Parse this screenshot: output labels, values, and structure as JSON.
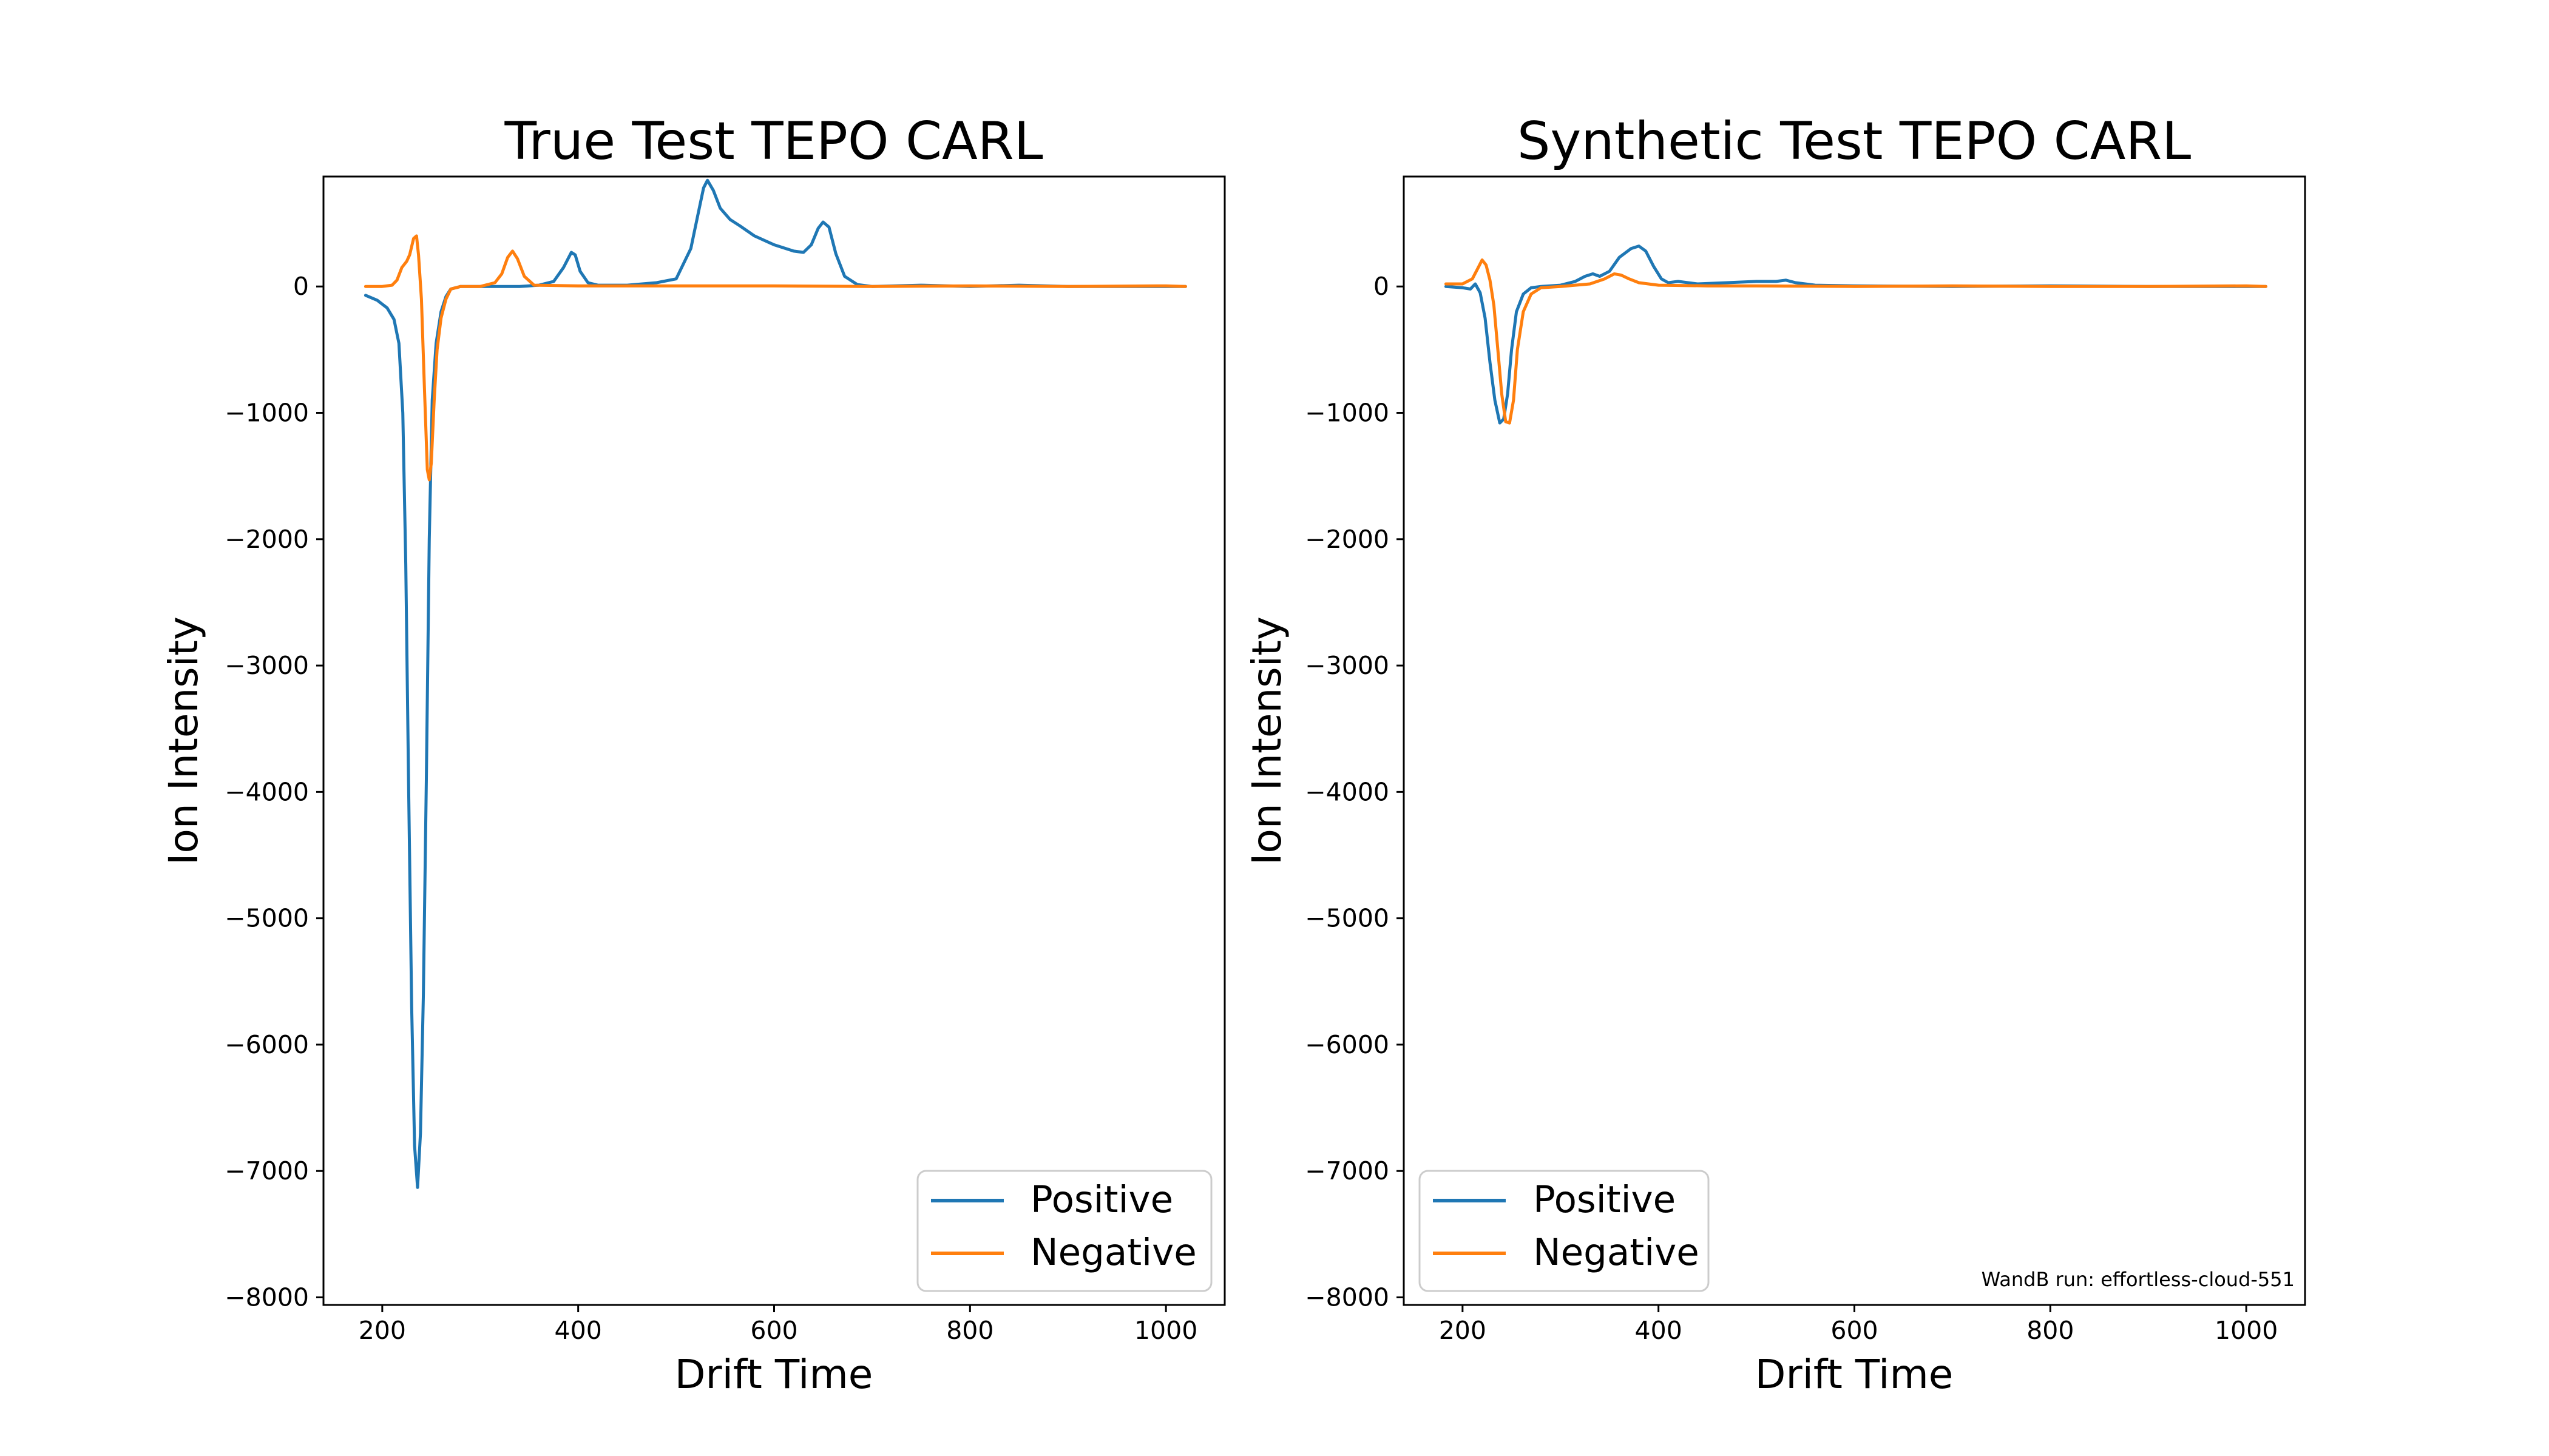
{
  "chart_data": [
    {
      "type": "line",
      "title": "True Test TEPO CARL",
      "xlabel": "Drift Time",
      "ylabel": "Ion Intensity",
      "xlim": [
        140,
        1060
      ],
      "ylim": [
        -8060,
        870
      ],
      "xticks": [
        200,
        400,
        600,
        800,
        1000
      ],
      "yticks": [
        0,
        -1000,
        -2000,
        -3000,
        -4000,
        -5000,
        -6000,
        -7000,
        -8000
      ],
      "ytick_labels": [
        "0",
        "−1000",
        "−2000",
        "−3000",
        "−4000",
        "−5000",
        "−6000",
        "−7000",
        "−8000"
      ],
      "legend": {
        "position": "lower-right"
      },
      "grid": false,
      "annotation": "",
      "series": [
        {
          "name": "Positive",
          "color": "#1f77b4",
          "x": [
            183,
            195,
            205,
            212,
            217,
            221,
            224,
            227,
            230,
            233,
            236,
            239,
            242,
            245,
            248,
            251,
            255,
            260,
            265,
            270,
            280,
            300,
            320,
            340,
            360,
            375,
            385,
            393,
            397,
            402,
            410,
            420,
            450,
            480,
            500,
            515,
            522,
            528,
            532,
            538,
            545,
            555,
            565,
            580,
            600,
            620,
            630,
            638,
            645,
            650,
            656,
            663,
            672,
            685,
            700,
            750,
            800,
            850,
            900,
            950,
            1000,
            1020
          ],
          "y": [
            -70,
            -110,
            -170,
            -260,
            -450,
            -1000,
            -2200,
            -4000,
            -5700,
            -6800,
            -7130,
            -6700,
            -5600,
            -3900,
            -2000,
            -900,
            -450,
            -200,
            -80,
            -20,
            0,
            0,
            0,
            0,
            10,
            40,
            150,
            270,
            250,
            120,
            30,
            10,
            10,
            30,
            60,
            300,
            560,
            780,
            840,
            760,
            620,
            530,
            480,
            400,
            330,
            280,
            270,
            330,
            460,
            510,
            470,
            260,
            80,
            15,
            0,
            10,
            0,
            10,
            0,
            0,
            0,
            0
          ]
        },
        {
          "name": "Negative",
          "color": "#ff7f0e",
          "x": [
            183,
            200,
            210,
            215,
            220,
            225,
            228,
            232,
            235,
            237,
            240,
            243,
            246,
            248,
            250,
            253,
            256,
            260,
            265,
            270,
            280,
            300,
            315,
            322,
            328,
            333,
            338,
            345,
            355,
            400,
            500,
            600,
            700,
            800,
            900,
            1000,
            1020
          ],
          "y": [
            0,
            0,
            10,
            50,
            150,
            200,
            250,
            380,
            400,
            250,
            -100,
            -800,
            -1450,
            -1530,
            -1400,
            -900,
            -500,
            -250,
            -100,
            -20,
            0,
            0,
            30,
            100,
            230,
            280,
            220,
            80,
            10,
            5,
            5,
            5,
            0,
            5,
            0,
            5,
            0
          ]
        }
      ]
    },
    {
      "type": "line",
      "title": "Synthetic Test TEPO CARL",
      "xlabel": "Drift Time",
      "ylabel": "Ion Intensity",
      "xlim": [
        140,
        1060
      ],
      "ylim": [
        -8060,
        870
      ],
      "xticks": [
        200,
        400,
        600,
        800,
        1000
      ],
      "yticks": [
        0,
        -1000,
        -2000,
        -3000,
        -4000,
        -5000,
        -6000,
        -7000,
        -8000
      ],
      "ytick_labels": [
        "0",
        "−1000",
        "−2000",
        "−3000",
        "−4000",
        "−5000",
        "−6000",
        "−7000",
        "−8000"
      ],
      "legend": {
        "position": "lower-left"
      },
      "grid": false,
      "annotation": "WandB run: effortless-cloud-551",
      "series": [
        {
          "name": "Positive",
          "color": "#1f77b4",
          "x": [
            183,
            200,
            208,
            213,
            218,
            223,
            228,
            233,
            238,
            242,
            246,
            250,
            255,
            262,
            270,
            280,
            300,
            315,
            325,
            333,
            340,
            350,
            360,
            372,
            380,
            387,
            395,
            403,
            410,
            420,
            440,
            470,
            500,
            520,
            530,
            540,
            560,
            600,
            700,
            800,
            900,
            1000,
            1020
          ],
          "y": [
            0,
            -10,
            -20,
            20,
            -50,
            -250,
            -600,
            -900,
            -1080,
            -1050,
            -850,
            -500,
            -200,
            -60,
            -10,
            0,
            10,
            40,
            80,
            100,
            80,
            120,
            230,
            300,
            320,
            280,
            160,
            60,
            30,
            40,
            20,
            30,
            40,
            40,
            50,
            30,
            10,
            5,
            0,
            5,
            0,
            0,
            0
          ]
        },
        {
          "name": "Negative",
          "color": "#ff7f0e",
          "x": [
            183,
            200,
            210,
            216,
            220,
            224,
            228,
            232,
            236,
            240,
            244,
            248,
            252,
            256,
            262,
            270,
            280,
            300,
            330,
            345,
            355,
            362,
            370,
            380,
            400,
            450,
            500,
            600,
            700,
            800,
            900,
            1000,
            1020
          ],
          "y": [
            20,
            20,
            60,
            150,
            210,
            170,
            50,
            -150,
            -500,
            -850,
            -1070,
            -1080,
            -900,
            -500,
            -200,
            -60,
            -10,
            0,
            20,
            60,
            100,
            90,
            60,
            30,
            10,
            5,
            5,
            0,
            5,
            0,
            0,
            5,
            0
          ]
        }
      ]
    }
  ]
}
